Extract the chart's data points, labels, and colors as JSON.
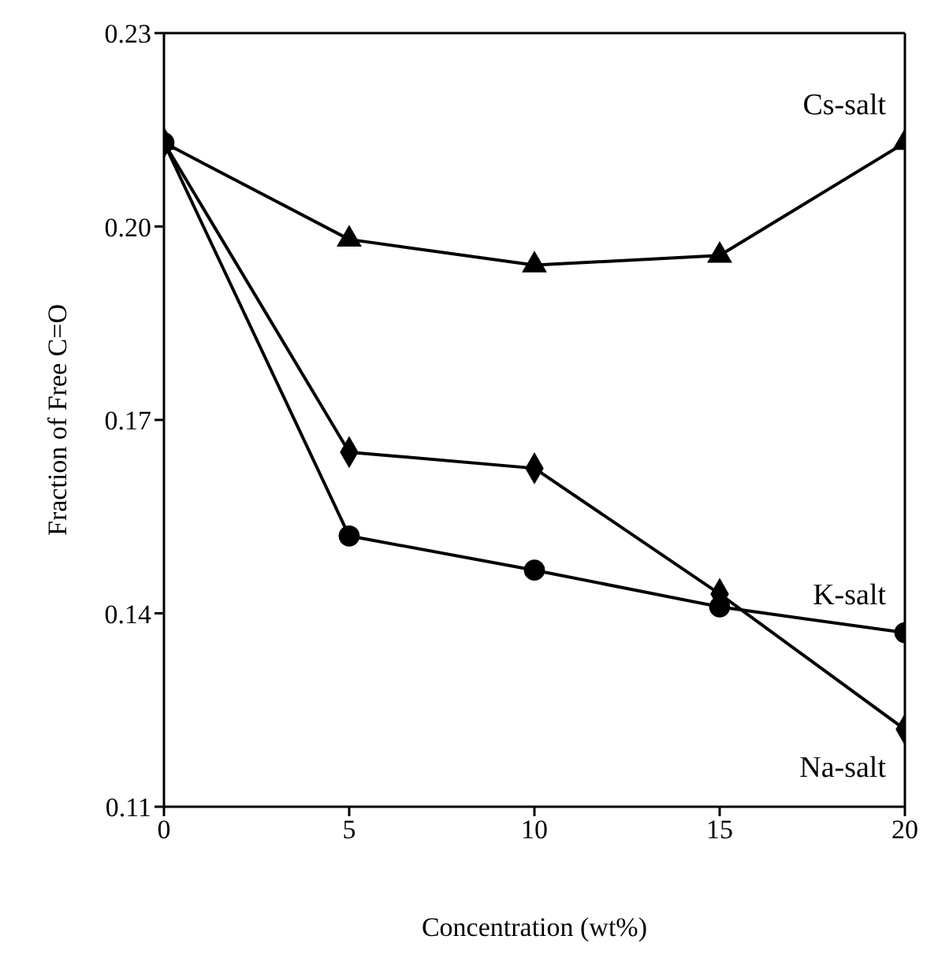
{
  "chart_data": {
    "type": "line",
    "xlabel": "Concentration (wt%)",
    "ylabel": "Fraction of Free C=O",
    "x": [
      0,
      5,
      10,
      15,
      20
    ],
    "xlim": [
      0,
      20
    ],
    "xticks": [
      0,
      5,
      10,
      15,
      20
    ],
    "ylim": [
      0.11,
      0.23
    ],
    "yticks": [
      0.11,
      0.14,
      0.17,
      {
        "value": 0.2,
        "label": "0.20"
      },
      0.23
    ],
    "line_style": "solid",
    "series": [
      {
        "name": "Cs-salt",
        "color": "#000000",
        "marker": "triangle",
        "values": [
          0.213,
          0.198,
          0.194,
          0.1955,
          0.213
        ]
      },
      {
        "name": "Na-salt",
        "color": "#000000",
        "marker": "diamond",
        "values": [
          0.213,
          0.165,
          0.1625,
          0.143,
          0.122
        ]
      },
      {
        "name": "K-salt",
        "color": "#000000",
        "marker": "circle",
        "values": [
          0.213,
          0.152,
          0.1467,
          0.141,
          0.137
        ]
      }
    ]
  }
}
